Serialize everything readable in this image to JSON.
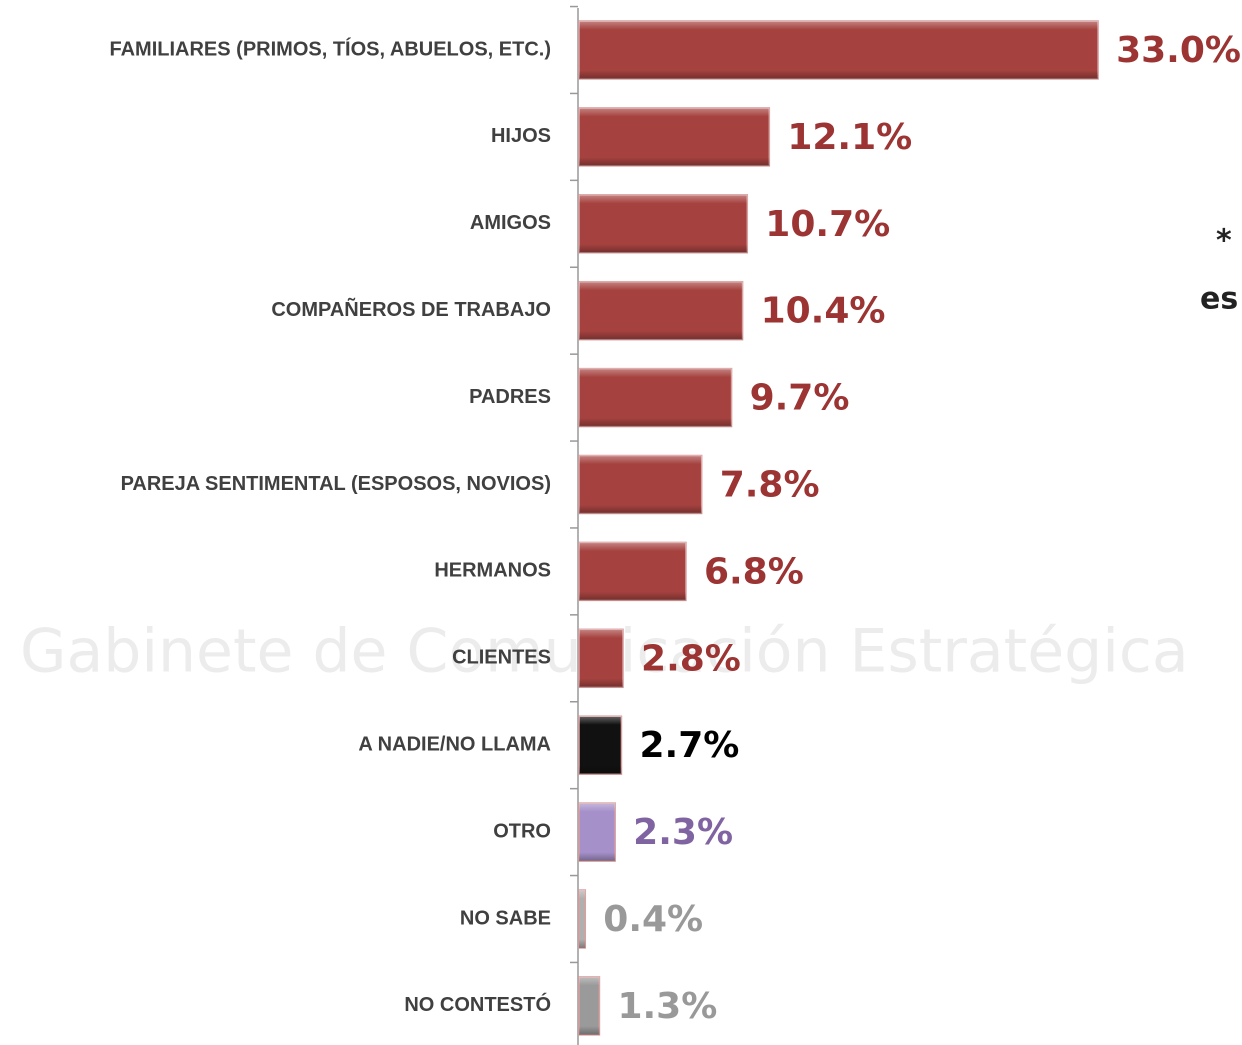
{
  "chart_data": {
    "type": "bar",
    "orientation": "horizontal",
    "watermark": "Gabinete de Comunicación Estratégica",
    "annotations": [
      "*",
      "es"
    ],
    "categories": [
      "FAMILIARES (PRIMOS, TÍOS, ABUELOS, ETC.)",
      "HIJOS",
      "AMIGOS",
      "COMPAÑEROS DE TRABAJO",
      "PADRES",
      "PAREJA SENTIMENTAL (ESPOSOS, NOVIOS)",
      "HERMANOS",
      "CLIENTES",
      "A NADIE/NO LLAMA",
      "OTRO",
      "NO SABE",
      "NO CONTESTÓ"
    ],
    "values": [
      33.0,
      12.1,
      10.7,
      10.4,
      9.7,
      7.8,
      6.8,
      2.8,
      2.7,
      2.3,
      0.4,
      1.3
    ],
    "value_labels": [
      "33.0%",
      "12.1%",
      "10.7%",
      "10.4%",
      "9.7%",
      "7.8%",
      "6.8%",
      "2.8%",
      "2.7%",
      "2.3%",
      "0.4%",
      "1.3%"
    ],
    "colors": [
      "#a5423f",
      "#a5423f",
      "#a5423f",
      "#a5423f",
      "#a5423f",
      "#a5423f",
      "#a5423f",
      "#a5423f",
      "#111111",
      "#a590c9",
      "#b0b0b0",
      "#9a9a9a"
    ],
    "label_colors": [
      "#9b3432",
      "#9b3432",
      "#9b3432",
      "#9b3432",
      "#9b3432",
      "#9b3432",
      "#9b3432",
      "#9b3432",
      "#000000",
      "#8064a2",
      "#999999",
      "#999999"
    ]
  }
}
